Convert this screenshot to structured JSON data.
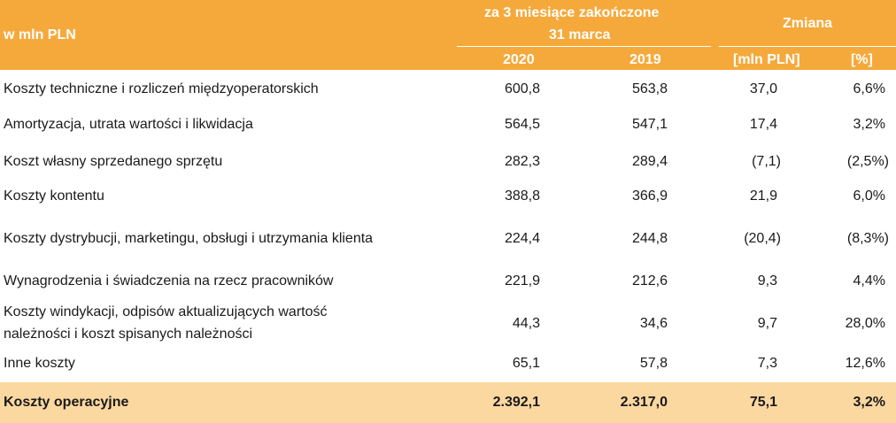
{
  "header": {
    "unit_label": "w mln PLN",
    "period_line1": "za 3 miesiące zakończone",
    "period_line2": "31 marca",
    "change_label": "Zmiana",
    "col_2020": "2020",
    "col_2019": "2019",
    "col_mln": "[mln PLN]",
    "col_pct": "[%]"
  },
  "rows": [
    {
      "label": "Koszty techniczne i rozliczeń międzyoperatorskich",
      "v2020": "600,8",
      "v2019": "563,8",
      "chg": "37,0",
      "pct": "6,6%"
    },
    {
      "label": "Amortyzacja, utrata wartości i likwidacja",
      "v2020": "564,5",
      "v2019": "547,1",
      "chg": "17,4",
      "pct": "3,2%"
    },
    {
      "label": "Koszt własny sprzedanego sprzętu",
      "v2020": "282,3",
      "v2019": "289,4",
      "chg": "(7,1)",
      "pct": "(2,5%)"
    },
    {
      "label": "Koszty kontentu",
      "v2020": "388,8",
      "v2019": "366,9",
      "chg": "21,9",
      "pct": "6,0%"
    },
    {
      "label": "Koszty dystrybucji, marketingu, obsługi i utrzymania klienta",
      "v2020": "224,4",
      "v2019": "244,8",
      "chg": "(20,4)",
      "pct": "(8,3%)"
    },
    {
      "label": "Wynagrodzenia i świadczenia na rzecz pracowników",
      "v2020": "221,9",
      "v2019": "212,6",
      "chg": "9,3",
      "pct": "4,4%"
    },
    {
      "label_line1": "Koszty windykacji, odpisów aktualizujących wartość",
      "label_line2": "należności i koszt spisanych należności",
      "v2020": "44,3",
      "v2019": "34,6",
      "chg": "9,7",
      "pct": "28,0%"
    },
    {
      "label": "Inne koszty",
      "v2020": "65,1",
      "v2019": "57,8",
      "chg": "7,3",
      "pct": "12,6%"
    }
  ],
  "total": {
    "label": "Koszty operacyjne",
    "v2020": "2.392,1",
    "v2019": "2.317,0",
    "chg": "75,1",
    "pct": "3,2%"
  }
}
